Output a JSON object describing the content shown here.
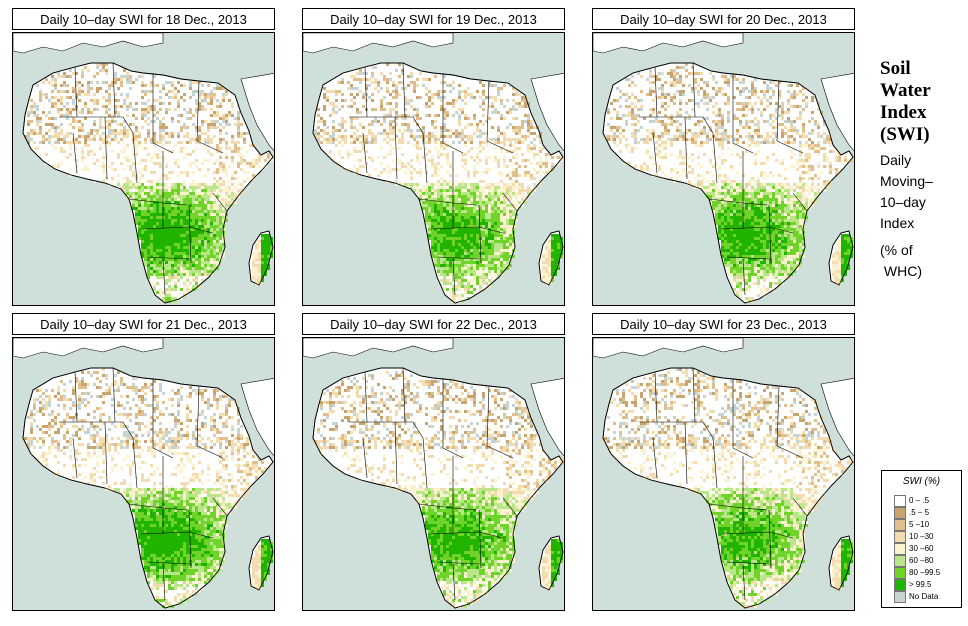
{
  "panels": [
    {
      "title": "Daily 10–day SWI for  18 Dec., 2013",
      "wet": 0.55
    },
    {
      "title": "Daily 10–day SWI for  19 Dec., 2013",
      "wet": 0.48
    },
    {
      "title": "Daily 10–day SWI for  20 Dec., 2013",
      "wet": 0.52
    },
    {
      "title": "Daily 10–day SWI for  21 Dec., 2013",
      "wet": 0.58
    },
    {
      "title": "Daily 10–day SWI for  22 Dec., 2013",
      "wet": 0.5
    },
    {
      "title": "Daily 10–day SWI for  23 Dec., 2013",
      "wet": 0.45
    }
  ],
  "side": {
    "title_lines": [
      "Soil",
      "Water",
      "Index",
      "(SWI)"
    ],
    "desc_lines": [
      "Daily",
      "Moving–",
      "10–day",
      "Index"
    ],
    "unit_lines": [
      "(% of",
      " WHC)"
    ]
  },
  "legend": {
    "title": "SWI (%)",
    "items": [
      {
        "label": "0 – .5",
        "color": "#ffffff"
      },
      {
        "label": ".5 – 5",
        "color": "#c8a46e"
      },
      {
        "label": "5 –10",
        "color": "#e0bf8c"
      },
      {
        "label": "10 –30",
        "color": "#f3ddb0"
      },
      {
        "label": "30 –60",
        "color": "#fbf3cf"
      },
      {
        "label": "60 –80",
        "color": "#b8e689"
      },
      {
        "label": "80 –99.5",
        "color": "#6fd32a"
      },
      {
        "label": "> 99.5",
        "color": "#20b400"
      },
      {
        "label": "No Data",
        "color": "#c6d4d4"
      }
    ]
  },
  "colors": {
    "ocean": "#cfe0da",
    "land": "#ffffff",
    "border": "#000000"
  }
}
